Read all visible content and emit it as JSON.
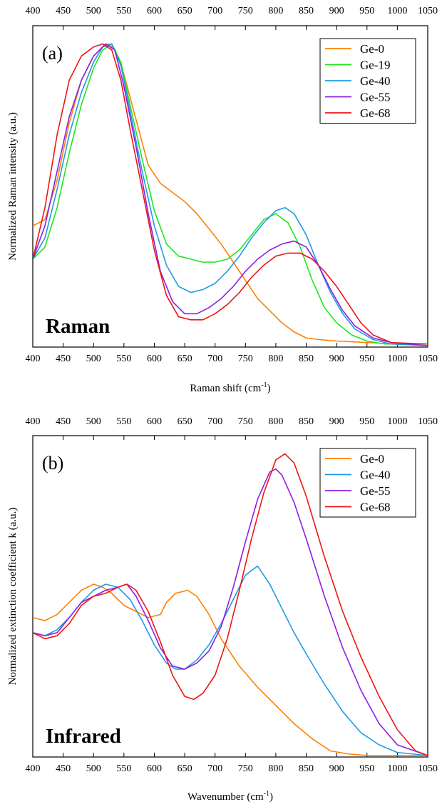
{
  "colors": {
    "Ge-0": "#ff8000",
    "Ge-19": "#1ee61e",
    "Ge-40": "#1e9be6",
    "Ge-55": "#8c1ee6",
    "Ge-68": "#f01414"
  },
  "chart_data": [
    {
      "type": "line",
      "panel_label": "(a)",
      "corner_label": "Raman",
      "xlabel": "Raman shift (cm",
      "xlabel_sup": "-1",
      "xlabel_close": ")",
      "ylabel": "Normalized Raman intensity (a.u.)",
      "xlim": [
        400,
        1050
      ],
      "ylim": [
        0,
        1.06
      ],
      "ticks": [
        400,
        450,
        500,
        550,
        600,
        650,
        700,
        750,
        800,
        850,
        900,
        950,
        1000,
        1050
      ],
      "tick_labels_top": true,
      "legend_position": "top-right",
      "series": [
        {
          "name": "Ge-0",
          "x": [
            400,
            420,
            440,
            460,
            480,
            500,
            515,
            525,
            535,
            550,
            570,
            590,
            610,
            630,
            650,
            670,
            690,
            710,
            730,
            750,
            770,
            790,
            810,
            830,
            850,
            870,
            900,
            950,
            1000,
            1050
          ],
          "y": [
            0.4,
            0.42,
            0.55,
            0.74,
            0.88,
            0.96,
            0.99,
            1.0,
            0.98,
            0.9,
            0.75,
            0.6,
            0.54,
            0.51,
            0.48,
            0.44,
            0.39,
            0.34,
            0.28,
            0.22,
            0.16,
            0.12,
            0.08,
            0.05,
            0.03,
            0.025,
            0.02,
            0.015,
            0.01,
            0.005
          ]
        },
        {
          "name": "Ge-19",
          "x": [
            400,
            420,
            440,
            460,
            480,
            500,
            515,
            530,
            545,
            560,
            580,
            600,
            620,
            640,
            660,
            680,
            700,
            720,
            740,
            760,
            780,
            800,
            820,
            840,
            860,
            880,
            900,
            925,
            950,
            980,
            1000,
            1050
          ],
          "y": [
            0.29,
            0.33,
            0.46,
            0.64,
            0.8,
            0.92,
            0.98,
            1.0,
            0.94,
            0.8,
            0.62,
            0.45,
            0.34,
            0.3,
            0.29,
            0.28,
            0.28,
            0.29,
            0.32,
            0.37,
            0.42,
            0.44,
            0.41,
            0.33,
            0.22,
            0.13,
            0.08,
            0.04,
            0.02,
            0.01,
            0.01,
            0.005
          ]
        },
        {
          "name": "Ge-40",
          "x": [
            400,
            420,
            440,
            460,
            480,
            500,
            515,
            530,
            545,
            560,
            580,
            600,
            620,
            640,
            660,
            680,
            700,
            720,
            740,
            760,
            780,
            800,
            815,
            830,
            850,
            870,
            890,
            910,
            930,
            960,
            990,
            1050
          ],
          "y": [
            0.29,
            0.36,
            0.52,
            0.7,
            0.84,
            0.94,
            0.99,
            1.0,
            0.93,
            0.78,
            0.58,
            0.4,
            0.27,
            0.2,
            0.18,
            0.19,
            0.21,
            0.25,
            0.3,
            0.36,
            0.41,
            0.45,
            0.46,
            0.44,
            0.37,
            0.27,
            0.18,
            0.11,
            0.06,
            0.025,
            0.01,
            0.005
          ]
        },
        {
          "name": "Ge-55",
          "x": [
            400,
            420,
            440,
            460,
            480,
            500,
            520,
            535,
            550,
            570,
            590,
            610,
            630,
            650,
            670,
            690,
            710,
            730,
            750,
            770,
            790,
            810,
            830,
            850,
            870,
            890,
            910,
            930,
            960,
            990,
            1050
          ],
          "y": [
            0.29,
            0.4,
            0.58,
            0.76,
            0.88,
            0.96,
            1.0,
            0.98,
            0.86,
            0.66,
            0.44,
            0.25,
            0.15,
            0.11,
            0.11,
            0.13,
            0.16,
            0.2,
            0.25,
            0.29,
            0.32,
            0.34,
            0.35,
            0.33,
            0.27,
            0.19,
            0.12,
            0.07,
            0.03,
            0.015,
            0.005
          ]
        },
        {
          "name": "Ge-68",
          "x": [
            400,
            420,
            440,
            460,
            480,
            500,
            515,
            530,
            545,
            560,
            580,
            600,
            620,
            640,
            660,
            680,
            700,
            720,
            740,
            760,
            780,
            800,
            820,
            840,
            860,
            880,
            900,
            920,
            940,
            960,
            990,
            1050
          ],
          "y": [
            0.29,
            0.46,
            0.7,
            0.88,
            0.96,
            0.99,
            1.0,
            0.98,
            0.88,
            0.72,
            0.52,
            0.32,
            0.17,
            0.1,
            0.09,
            0.09,
            0.11,
            0.14,
            0.18,
            0.23,
            0.27,
            0.3,
            0.31,
            0.31,
            0.29,
            0.25,
            0.2,
            0.14,
            0.08,
            0.04,
            0.015,
            0.01
          ]
        }
      ]
    },
    {
      "type": "line",
      "panel_label": "(b)",
      "corner_label": "Infrared",
      "xlabel": "Wavenumber (cm",
      "xlabel_sup": "-1",
      "xlabel_close": ")",
      "ylabel": "Normalized extinction coefficient k (a.u.)",
      "xlim": [
        400,
        1050
      ],
      "ylim": [
        0,
        1.06
      ],
      "ticks": [
        400,
        450,
        500,
        550,
        600,
        650,
        700,
        750,
        800,
        850,
        900,
        950,
        1000,
        1050
      ],
      "tick_labels_top": true,
      "legend_position": "top-right",
      "series": [
        {
          "name": "Ge-0",
          "x": [
            400,
            420,
            440,
            460,
            480,
            500,
            515,
            530,
            550,
            570,
            590,
            610,
            620,
            635,
            655,
            670,
            690,
            710,
            740,
            770,
            800,
            830,
            860,
            890,
            920,
            950,
            1000,
            1050
          ],
          "y": [
            0.46,
            0.45,
            0.47,
            0.51,
            0.55,
            0.57,
            0.56,
            0.54,
            0.5,
            0.48,
            0.46,
            0.47,
            0.51,
            0.54,
            0.55,
            0.53,
            0.47,
            0.39,
            0.3,
            0.23,
            0.17,
            0.11,
            0.06,
            0.02,
            0.01,
            0.005,
            0.005,
            0.005
          ]
        },
        {
          "name": "Ge-40",
          "x": [
            400,
            420,
            440,
            460,
            480,
            500,
            520,
            540,
            560,
            580,
            600,
            620,
            635,
            650,
            670,
            690,
            710,
            730,
            750,
            770,
            790,
            810,
            830,
            850,
            880,
            910,
            940,
            970,
            1000,
            1050
          ],
          "y": [
            0.41,
            0.4,
            0.42,
            0.46,
            0.51,
            0.55,
            0.57,
            0.56,
            0.52,
            0.45,
            0.37,
            0.31,
            0.29,
            0.29,
            0.32,
            0.37,
            0.44,
            0.52,
            0.6,
            0.63,
            0.57,
            0.49,
            0.41,
            0.34,
            0.24,
            0.15,
            0.08,
            0.04,
            0.015,
            0.005
          ]
        },
        {
          "name": "Ge-55",
          "x": [
            400,
            420,
            440,
            460,
            480,
            500,
            520,
            540,
            555,
            570,
            590,
            610,
            630,
            650,
            670,
            690,
            710,
            730,
            750,
            770,
            790,
            800,
            810,
            830,
            850,
            880,
            910,
            940,
            970,
            1000,
            1050
          ],
          "y": [
            0.41,
            0.4,
            0.41,
            0.46,
            0.51,
            0.53,
            0.55,
            0.56,
            0.57,
            0.53,
            0.45,
            0.36,
            0.3,
            0.29,
            0.31,
            0.35,
            0.43,
            0.56,
            0.71,
            0.85,
            0.94,
            0.95,
            0.93,
            0.84,
            0.72,
            0.53,
            0.36,
            0.22,
            0.11,
            0.04,
            0.005
          ]
        },
        {
          "name": "Ge-68",
          "x": [
            400,
            420,
            440,
            460,
            480,
            500,
            520,
            540,
            555,
            570,
            590,
            610,
            630,
            650,
            665,
            680,
            700,
            720,
            740,
            760,
            780,
            800,
            815,
            830,
            850,
            880,
            910,
            940,
            970,
            1000,
            1030,
            1050
          ],
          "y": [
            0.41,
            0.39,
            0.4,
            0.44,
            0.5,
            0.53,
            0.54,
            0.56,
            0.57,
            0.55,
            0.48,
            0.38,
            0.27,
            0.2,
            0.19,
            0.21,
            0.27,
            0.39,
            0.55,
            0.72,
            0.87,
            0.98,
            1.0,
            0.97,
            0.86,
            0.66,
            0.48,
            0.33,
            0.2,
            0.09,
            0.02,
            0.005
          ]
        }
      ]
    }
  ]
}
